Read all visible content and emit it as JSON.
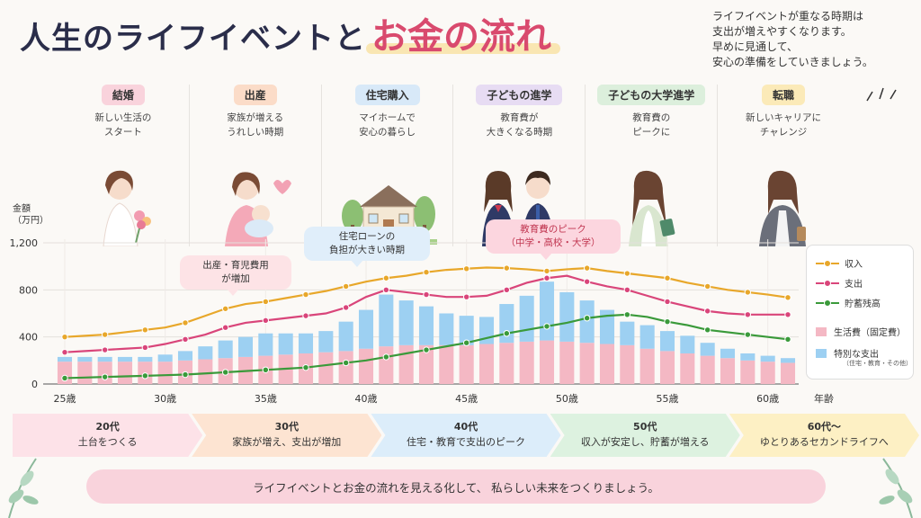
{
  "title": {
    "part1": "人生のライフイベントと",
    "part2": "お金の流れ"
  },
  "note": [
    "ライフイベントが重なる時期は",
    "支出が増えやすくなります。",
    "早めに見通して、",
    "安心の準備をしていきましょう。"
  ],
  "events": [
    {
      "label": "結婚",
      "color": "#f9d3dc",
      "desc": [
        "新しい生活の",
        "スタート"
      ],
      "icon": "bride-with-bouquet-illustration"
    },
    {
      "label": "出産",
      "color": "#fbdcc8",
      "desc": [
        "家族が増える",
        "うれしい時期"
      ],
      "icon": "mother-with-baby-illustration"
    },
    {
      "label": "住宅購入",
      "color": "#d8e9f8",
      "desc": [
        "マイホームで",
        "安心の暮らし"
      ],
      "icon": "house-illustration"
    },
    {
      "label": "子どもの進学",
      "color": "#e7dcf3",
      "desc": [
        "教育費が",
        "大きくなる時期"
      ],
      "icon": "students-illustration"
    },
    {
      "label": "子どもの大学進学",
      "color": "#dcefdc",
      "desc": [
        "教育費の",
        "ピークに"
      ],
      "icon": "university-student-illustration"
    },
    {
      "label": "転職",
      "color": "#fbeab8",
      "desc": [
        "新しいキャリアに",
        "チャレンジ"
      ],
      "icon": "career-woman-illustration"
    }
  ],
  "callouts": {
    "birth": [
      "出産・育児費用",
      "が増加"
    ],
    "housing": [
      "住宅ローンの",
      "負担が大きい時期"
    ],
    "education": [
      "教育費のピーク",
      "（中学・高校・大学）"
    ]
  },
  "chart_data": {
    "type": "bar+line",
    "ylabel": "金額\n（万円）",
    "xlabel": "年齢",
    "ylim": [
      0,
      1200
    ],
    "yticks": [
      0,
      400,
      800,
      "1,200"
    ],
    "x": [
      25,
      26,
      27,
      28,
      29,
      30,
      31,
      32,
      33,
      34,
      35,
      36,
      37,
      38,
      39,
      40,
      41,
      42,
      43,
      44,
      45,
      46,
      47,
      48,
      49,
      50,
      51,
      52,
      53,
      54,
      55,
      56,
      57,
      58,
      59,
      60,
      61
    ],
    "xtick_labels": [
      "25歳",
      "30歳",
      "35歳",
      "40歳",
      "45歳",
      "50歳",
      "55歳",
      "60歳"
    ],
    "xtick_values": [
      25,
      30,
      35,
      40,
      45,
      50,
      55,
      60
    ],
    "series": [
      {
        "name": "収入",
        "kind": "line",
        "color": "#e8a72a",
        "values": [
          400,
          410,
          420,
          440,
          460,
          480,
          520,
          580,
          640,
          680,
          700,
          730,
          760,
          790,
          830,
          870,
          900,
          920,
          950,
          970,
          980,
          990,
          985,
          975,
          960,
          975,
          985,
          960,
          940,
          920,
          900,
          860,
          830,
          800,
          780,
          760,
          735
        ]
      },
      {
        "name": "支出",
        "kind": "line",
        "color": "#d9457a",
        "values": [
          270,
          280,
          290,
          300,
          310,
          340,
          380,
          420,
          480,
          520,
          540,
          560,
          580,
          600,
          650,
          740,
          800,
          780,
          760,
          740,
          740,
          750,
          800,
          860,
          900,
          920,
          870,
          830,
          800,
          750,
          700,
          660,
          620,
          600,
          590,
          590,
          590
        ]
      },
      {
        "name": "貯蓄残高",
        "kind": "line",
        "color": "#3a9a3a",
        "values": [
          50,
          55,
          60,
          65,
          70,
          75,
          80,
          90,
          100,
          110,
          120,
          130,
          140,
          160,
          180,
          200,
          230,
          260,
          290,
          320,
          350,
          390,
          430,
          460,
          490,
          520,
          560,
          580,
          590,
          570,
          530,
          500,
          460,
          440,
          420,
          400,
          380
        ]
      },
      {
        "name": "生活費（固定費）",
        "kind": "bar",
        "color": "#f4b8c4",
        "values": [
          190,
          190,
          190,
          190,
          190,
          190,
          200,
          210,
          220,
          230,
          240,
          250,
          260,
          270,
          280,
          300,
          320,
          330,
          330,
          330,
          330,
          340,
          350,
          360,
          370,
          360,
          350,
          340,
          330,
          300,
          280,
          260,
          240,
          220,
          200,
          190,
          180
        ]
      },
      {
        "name": "特別な支出",
        "legend_sub": "（住宅・教育・その他）",
        "kind": "bar",
        "color": "#9dd0f2",
        "values": [
          40,
          40,
          40,
          40,
          40,
          60,
          80,
          110,
          150,
          170,
          190,
          180,
          170,
          180,
          250,
          330,
          440,
          380,
          330,
          270,
          250,
          230,
          330,
          390,
          500,
          420,
          360,
          290,
          200,
          200,
          170,
          150,
          110,
          80,
          60,
          50,
          40
        ]
      }
    ],
    "grid": true
  },
  "decades": [
    {
      "age": "20代",
      "desc": "土台をつくる",
      "color": "#fde2e8"
    },
    {
      "age": "30代",
      "desc": "家族が増え、支出が増加",
      "color": "#fde4d2"
    },
    {
      "age": "40代",
      "desc": "住宅・教育で支出のピーク",
      "color": "#dcedfa"
    },
    {
      "age": "50代",
      "desc": "収入が安定し、貯蓄が増える",
      "color": "#ddf2e0"
    },
    {
      "age": "60代〜",
      "desc": "ゆとりあるセカンドライフへ",
      "color": "#fdf0c4"
    }
  ],
  "banner": "ライフイベントとお金の流れを見える化して、 私らしい未来をつくりましょう。"
}
